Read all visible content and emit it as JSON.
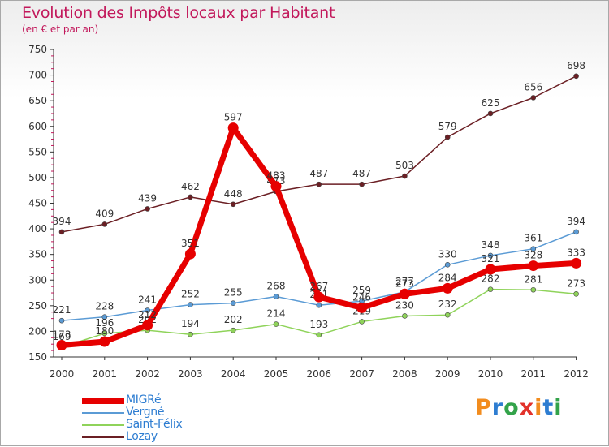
{
  "title": "Evolution des Impôts locaux par Habitant",
  "subtitle": "(en € et par an)",
  "brand": {
    "text": "Proxiti",
    "colors": [
      "#f28c1e",
      "#2e7dd1",
      "#33a34a",
      "#e2322b",
      "#f28c1e",
      "#2e7dd1",
      "#33a34a"
    ]
  },
  "chart_data": {
    "type": "line",
    "title": "Evolution des Impôts locaux par Habitant",
    "subtitle": "(en € et par an)",
    "xlabel": "",
    "ylabel": "",
    "ylim": [
      150,
      750
    ],
    "yticks": [
      150,
      200,
      250,
      300,
      350,
      400,
      450,
      500,
      550,
      600,
      650,
      700,
      750
    ],
    "categories": [
      "2000",
      "2001",
      "2002",
      "2003",
      "2004",
      "2005",
      "2006",
      "2007",
      "2008",
      "2009",
      "2010",
      "2011",
      "2012"
    ],
    "series": [
      {
        "name": "Lozay",
        "color": "#6b1f24",
        "values": [
          394,
          409,
          439,
          462,
          448,
          473,
          487,
          487,
          503,
          579,
          625,
          656,
          698
        ]
      },
      {
        "name": "Vergné",
        "color": "#5b9bd5",
        "values": [
          221,
          228,
          241,
          252,
          255,
          268,
          251,
          259,
          277,
          330,
          348,
          361,
          394
        ]
      },
      {
        "name": "Saint-Félix",
        "color": "#8fd35a",
        "values": [
          169,
          196,
          202,
          194,
          202,
          214,
          193,
          219,
          230,
          232,
          282,
          281,
          273
        ]
      },
      {
        "name": "MIGRé",
        "color": "#e60000",
        "values": [
          173,
          180,
          212,
          351,
          597,
          483,
          267,
          246,
          273,
          284,
          321,
          328,
          333
        ]
      }
    ],
    "grid": false,
    "legend": "bottom-left"
  }
}
